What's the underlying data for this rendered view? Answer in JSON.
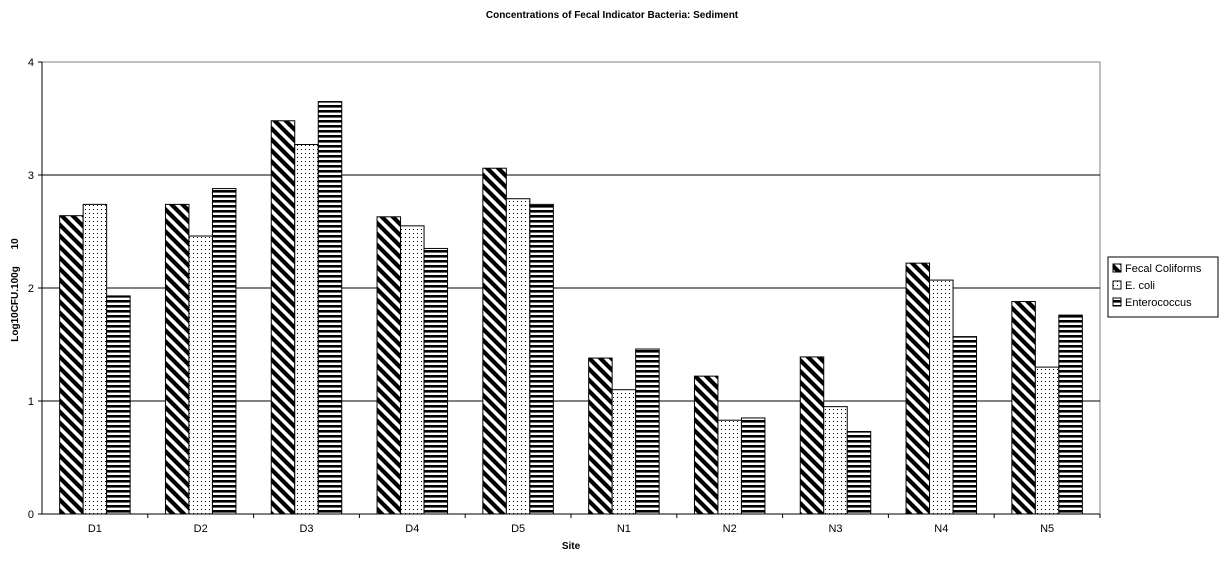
{
  "chart_data": {
    "type": "bar",
    "title": "Concentrations of Fecal Indicator Bacteria: Sediment",
    "xlabel": "Site",
    "ylabel": "Log10CFU.100g",
    "ylabel_suffix": "10",
    "categories": [
      "D1",
      "D2",
      "D3",
      "D4",
      "D5",
      "N1",
      "N2",
      "N3",
      "N4",
      "N5"
    ],
    "ylim": [
      0,
      4
    ],
    "yticks": [
      "0",
      "1",
      "2",
      "3",
      "4"
    ],
    "grid": true,
    "legend_position": "right",
    "series": [
      {
        "name": "Fecal Coliforms",
        "pattern": "diagonal-stripes",
        "values": [
          2.64,
          2.74,
          3.48,
          2.63,
          3.06,
          1.38,
          1.22,
          1.39,
          2.22,
          1.88
        ]
      },
      {
        "name": "E. coli",
        "pattern": "dots",
        "values": [
          2.74,
          2.46,
          3.27,
          2.55,
          2.79,
          1.1,
          0.83,
          0.95,
          2.07,
          1.3
        ]
      },
      {
        "name": "Enterococcus",
        "pattern": "horizontal-stripes",
        "values": [
          1.93,
          2.88,
          3.65,
          2.35,
          2.74,
          1.46,
          0.85,
          0.73,
          1.57,
          1.76
        ]
      }
    ]
  }
}
